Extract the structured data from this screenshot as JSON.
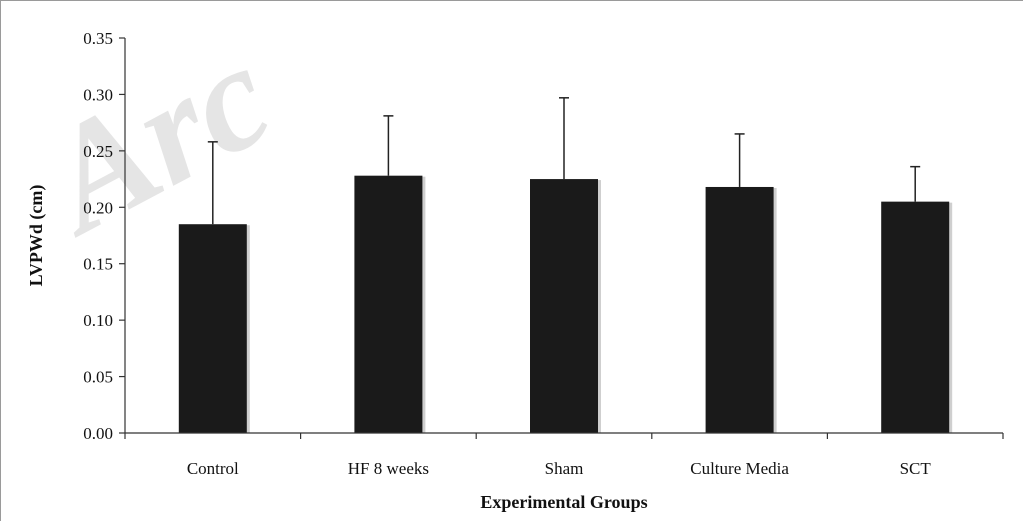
{
  "watermark": {
    "text": "Arc"
  },
  "chart_data": {
    "type": "bar",
    "title": "",
    "xlabel": "Experimental Groups",
    "ylabel": "LVPWd (cm)",
    "ylim": [
      0,
      0.35
    ],
    "yticks": [
      "0.00",
      "0.05",
      "0.10",
      "0.15",
      "0.20",
      "0.25",
      "0.30",
      "0.35"
    ],
    "categories": [
      "Control",
      "HF 8 weeks",
      "Sham",
      "Culture Media",
      "SCT"
    ],
    "values": [
      0.185,
      0.228,
      0.225,
      0.218,
      0.205
    ],
    "error_upper": [
      0.073,
      0.053,
      0.072,
      0.047,
      0.031
    ],
    "bar_color": "#1a1a1a",
    "grid": false,
    "legend": "none"
  }
}
